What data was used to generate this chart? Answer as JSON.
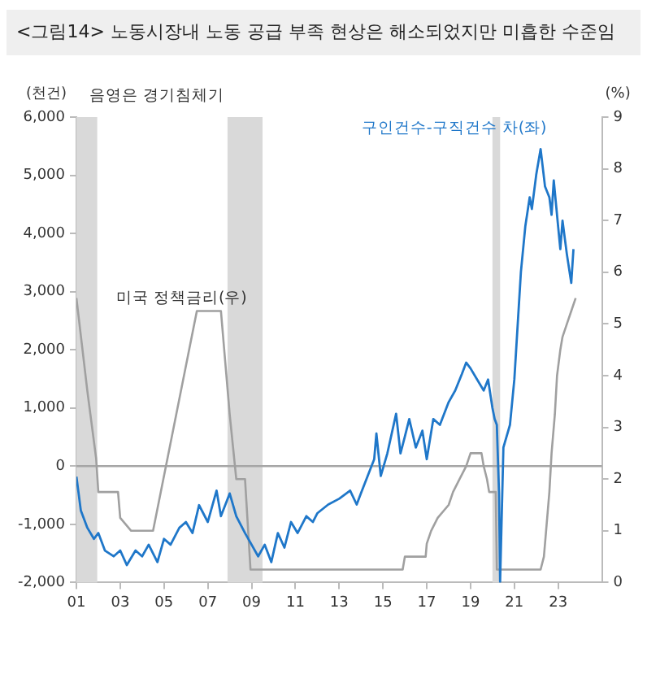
{
  "chart_data": {
    "type": "line",
    "title": "<그림14> 노동시장내 노동 공급 부족 현상은 해소되었지만 미흡한 수준임",
    "ylabel": "(천건)",
    "y2label": "(%)",
    "annotations": [
      "음영은 경기침체기"
    ],
    "xlim": [
      2001,
      2025
    ],
    "xticks": [
      {
        "value": 2001,
        "label": "01"
      },
      {
        "value": 2003,
        "label": "03"
      },
      {
        "value": 2005,
        "label": "05"
      },
      {
        "value": 2007,
        "label": "07"
      },
      {
        "value": 2009,
        "label": "09"
      },
      {
        "value": 2011,
        "label": "11"
      },
      {
        "value": 2013,
        "label": "13"
      },
      {
        "value": 2015,
        "label": "15"
      },
      {
        "value": 2017,
        "label": "17"
      },
      {
        "value": 2019,
        "label": "19"
      },
      {
        "value": 2021,
        "label": "21"
      },
      {
        "value": 2023,
        "label": "23"
      }
    ],
    "ylim": [
      -2000,
      6000
    ],
    "yticks": [
      {
        "value": -2000,
        "label": "-2,000"
      },
      {
        "value": -1000,
        "label": "-1,000"
      },
      0,
      {
        "value": 1000,
        "label": "1,000"
      },
      {
        "value": 2000,
        "label": "2,000"
      },
      {
        "value": 3000,
        "label": "3,000"
      },
      {
        "value": 4000,
        "label": "4,000"
      },
      {
        "value": 5000,
        "label": "5,000"
      },
      {
        "value": 6000,
        "label": "6,000"
      }
    ],
    "y2lim": [
      0,
      9
    ],
    "y2ticks": [
      0,
      1,
      2,
      3,
      4,
      5,
      6,
      7,
      8,
      9
    ],
    "legend": false,
    "grid": false,
    "marker": "none",
    "line_style": "solid",
    "bands": [
      {
        "axis": "x",
        "from": 2001,
        "to": 2001.95,
        "color": "#d9d9d9"
      },
      {
        "axis": "x",
        "from": 2007.9,
        "to": 2009.5,
        "color": "#d9d9d9"
      },
      {
        "axis": "x",
        "from": 2020,
        "to": 2020.35,
        "color": "#d9d9d9"
      }
    ],
    "ref_lines": [
      {
        "axis": "y",
        "value": 0,
        "color": "#a6a6a6"
      }
    ],
    "series": [
      {
        "name": "구인건수-구직건수 차(좌)",
        "color": "#1f77c9",
        "x": [
          2001,
          2001.2,
          2001.5,
          2001.8,
          2002,
          2002.3,
          2002.7,
          2003,
          2003.3,
          2003.7,
          2004,
          2004.3,
          2004.7,
          2005,
          2005.3,
          2005.7,
          2006,
          2006.3,
          2006.6,
          2007,
          2007.4,
          2007.6,
          2008,
          2008.3,
          2008.7,
          2009,
          2009.3,
          2009.6,
          2009.9,
          2010.2,
          2010.5,
          2010.8,
          2011.1,
          2011.5,
          2011.8,
          2012,
          2012.5,
          2013,
          2013.5,
          2013.8,
          2014,
          2014.3,
          2014.6,
          2014.7,
          2014.9,
          2015.2,
          2015.6,
          2015.8,
          2016,
          2016.2,
          2016.5,
          2016.8,
          2017,
          2017.3,
          2017.6,
          2018,
          2018.3,
          2018.6,
          2018.8,
          2019,
          2019.3,
          2019.6,
          2019.8,
          2020,
          2020.1,
          2020.2,
          2020.3,
          2020.35,
          2020.5,
          2020.8,
          2021,
          2021.3,
          2021.5,
          2021.7,
          2021.8,
          2022,
          2022.2,
          2022.4,
          2022.6,
          2022.7,
          2022.8,
          2023,
          2023.1,
          2023.2,
          2023.4,
          2023.6,
          2023.7
        ],
        "values": [
          -180,
          -760,
          -1060,
          -1250,
          -1150,
          -1450,
          -1550,
          -1450,
          -1700,
          -1450,
          -1550,
          -1350,
          -1650,
          -1250,
          -1350,
          -1060,
          -960,
          -1150,
          -670,
          -960,
          -420,
          -860,
          -470,
          -860,
          -1150,
          -1350,
          -1550,
          -1350,
          -1650,
          -1150,
          -1400,
          -960,
          -1150,
          -860,
          -960,
          -810,
          -660,
          -560,
          -420,
          -660,
          -460,
          -170,
          120,
          560,
          -170,
          220,
          900,
          220,
          510,
          810,
          320,
          610,
          120,
          810,
          710,
          1100,
          1300,
          1580,
          1780,
          1680,
          1490,
          1300,
          1490,
          1000,
          810,
          710,
          -460,
          -1990,
          320,
          710,
          1490,
          3340,
          4120,
          4620,
          4420,
          5010,
          5450,
          4810,
          4620,
          4320,
          4910,
          4120,
          3730,
          4220,
          3640,
          3150,
          3730
        ]
      },
      {
        "name": "미국 정책금리(우)",
        "color": "#a0a0a0",
        "axis": "y2",
        "x": [
          2001,
          2001.5,
          2001.9,
          2002,
          2002.9,
          2003,
          2003.5,
          2004.5,
          2006.5,
          2007.6,
          2007.8,
          2008,
          2008.3,
          2008.7,
          2008.95,
          2015.9,
          2016,
          2016.95,
          2017,
          2017.2,
          2017.5,
          2018,
          2018.2,
          2018.5,
          2018.8,
          2019,
          2019.5,
          2019.6,
          2019.75,
          2019.85,
          2020.15,
          2020.2,
          2022.2,
          2022.35,
          2022.45,
          2022.6,
          2022.7,
          2022.85,
          2022.95,
          2023.1,
          2023.2,
          2023.4,
          2023.6,
          2023.8
        ],
        "values": [
          5.5,
          3.7,
          2.4,
          1.75,
          1.75,
          1.25,
          1,
          1,
          5.25,
          5.25,
          4.25,
          3.25,
          2,
          2,
          0.25,
          0.25,
          0.5,
          0.5,
          0.75,
          1,
          1.25,
          1.5,
          1.75,
          2,
          2.25,
          2.5,
          2.5,
          2.25,
          2,
          1.75,
          1.75,
          0.25,
          0.25,
          0.5,
          1,
          1.75,
          2.5,
          3.25,
          4,
          4.5,
          4.75,
          5,
          5.25,
          5.5
        ]
      }
    ]
  }
}
